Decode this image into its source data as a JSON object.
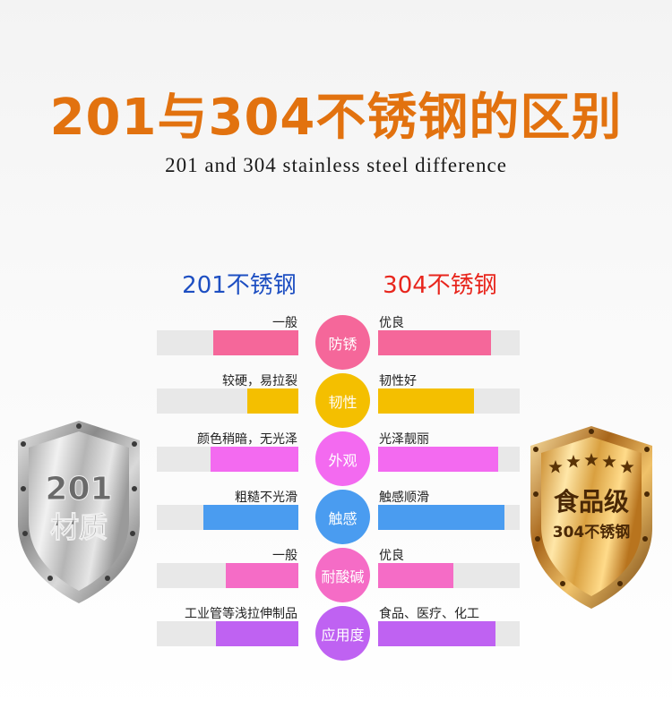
{
  "title": "201与304不锈钢的区别",
  "subtitle": "201 and 304 stainless steel difference",
  "left_heading": "201不锈钢",
  "right_heading": "304不锈钢",
  "left_badge": {
    "line1": "201",
    "line2": "材质"
  },
  "right_badge": {
    "line1": "食品级",
    "line2": "304不锈钢",
    "stars": 5
  },
  "rows": [
    {
      "category": "防锈",
      "color": "#f5679a",
      "left_text": "一般",
      "left_level": 0.6,
      "right_text": "优良",
      "right_level": 0.8
    },
    {
      "category": "韧性",
      "color": "#f4bf00",
      "left_text": "较硬，易拉裂",
      "left_level": 0.36,
      "right_text": "韧性好",
      "right_level": 0.68
    },
    {
      "category": "外观",
      "color": "#f36af0",
      "left_text": "颜色稍暗，无光泽",
      "left_level": 0.62,
      "right_text": "光泽靓丽",
      "right_level": 0.85
    },
    {
      "category": "触感",
      "color": "#4a9cf0",
      "left_text": "粗糙不光滑",
      "left_level": 0.67,
      "right_text": "触感顺滑",
      "right_level": 0.89
    },
    {
      "category": "耐酸碱",
      "color": "#f56cc6",
      "left_text": "一般",
      "left_level": 0.51,
      "right_text": "优良",
      "right_level": 0.53
    },
    {
      "category": "应用度",
      "color": "#bf62f2",
      "left_text": "工业管等浅拉伸制品",
      "left_level": 0.58,
      "right_text": "食品、医疗、化工",
      "right_level": 0.83
    }
  ]
}
